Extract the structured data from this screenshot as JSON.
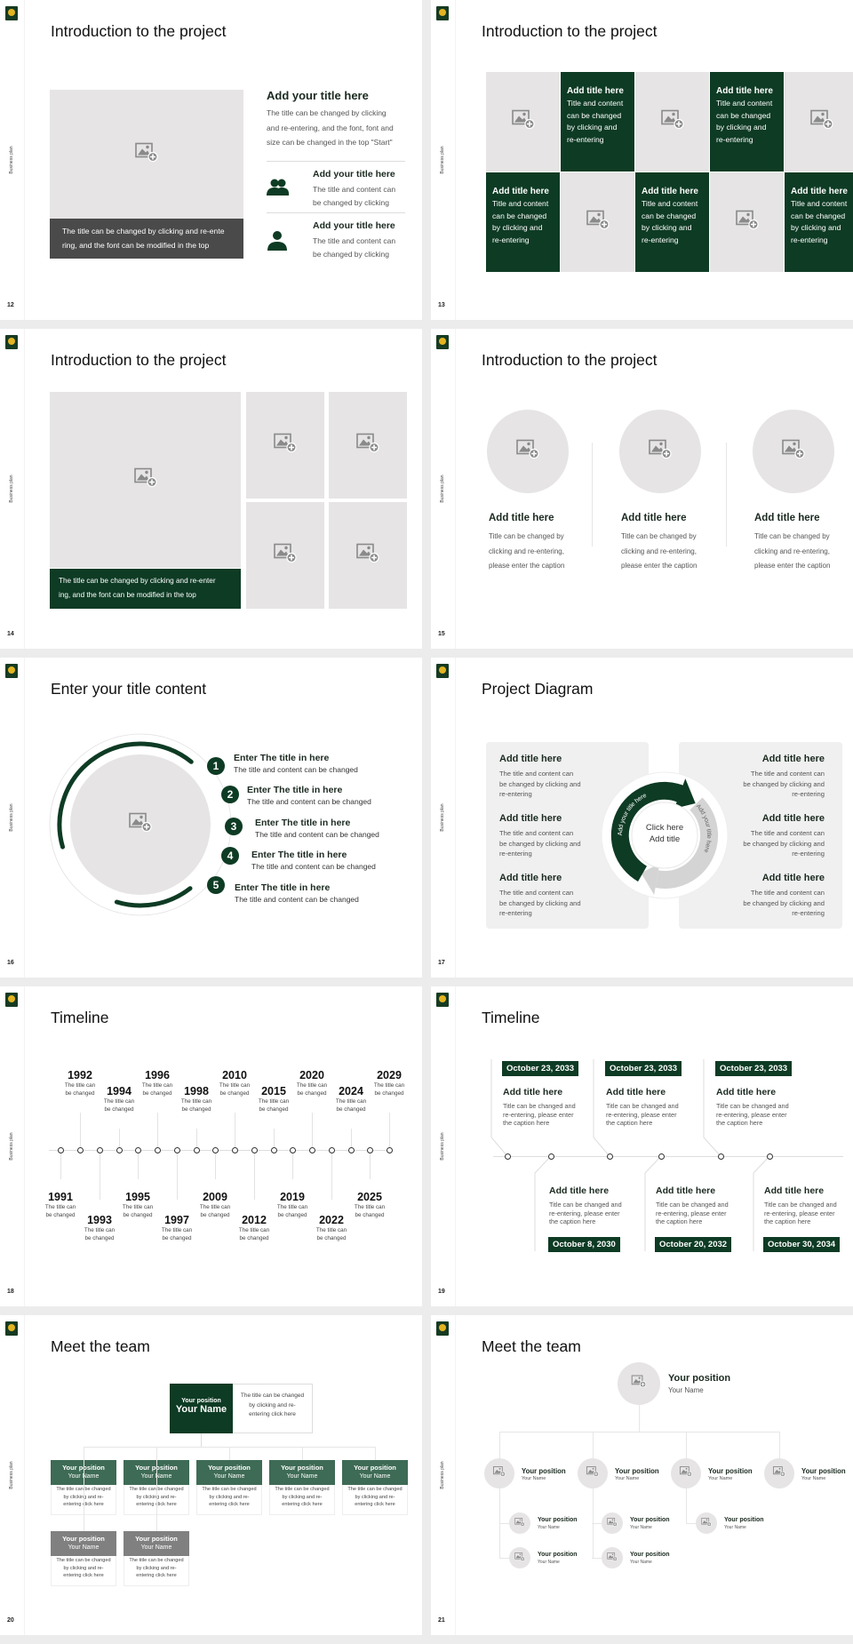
{
  "deck": {
    "sidebar_label": "Business plan"
  },
  "colors": {
    "brand_green": "#0e3b24",
    "team_green": "#3e6b55",
    "team_gray": "#808080",
    "placeholder": "#e6e4e4",
    "panel": "#f0f0f0"
  },
  "slides": [
    {
      "number": "12",
      "title": "Introduction to the project",
      "caption": [
        "The title can be changed by clicking and re-ente",
        "ring, and the font can be modified in the top"
      ],
      "heading": "Add your title here",
      "text": [
        "The title can be changed by clicking",
        "and re-entering, and the font, font and",
        "size can be changed in the top \"Start\""
      ],
      "items": [
        {
          "icon": "users-icon",
          "title": "Add your title here",
          "text": [
            "The title and content can",
            "be changed by clicking"
          ]
        },
        {
          "icon": "user-icon",
          "title": "Add your title here",
          "text": [
            "The title and content can",
            "be changed by clicking"
          ]
        }
      ]
    },
    {
      "number": "13",
      "title": "Introduction to the project",
      "text_cells": [
        {
          "title": "Add title here",
          "text": [
            "Title and content",
            "can be changed",
            "by clicking and",
            "re-entering"
          ]
        },
        {
          "title": "Add title here",
          "text": [
            "Title and content",
            "can be changed",
            "by clicking and",
            "re-entering"
          ]
        },
        {
          "title": "Add title here",
          "text": [
            "Title and content",
            "can be changed",
            "by clicking and",
            "re-entering"
          ]
        },
        {
          "title": "Add title here",
          "text": [
            "Title and content",
            "can be changed",
            "by clicking and",
            "re-entering"
          ]
        },
        {
          "title": "Add title here",
          "text": [
            "Title and content",
            "can be changed",
            "by clicking and",
            "re-entering"
          ]
        }
      ]
    },
    {
      "number": "14",
      "title": "Introduction to the project",
      "caption": [
        "The title can be changed by clicking and re-enter",
        "ing, and the font can be modified in the top"
      ]
    },
    {
      "number": "15",
      "title": "Introduction to the project",
      "columns": [
        {
          "title": "Add title here",
          "text": [
            "Title can be changed by",
            "clicking and re-entering,",
            "please enter the caption"
          ]
        },
        {
          "title": "Add title here",
          "text": [
            "Title can be changed by",
            "clicking and re-entering,",
            "please enter the caption"
          ]
        },
        {
          "title": "Add title here",
          "text": [
            "Title can be changed by",
            "clicking and re-entering,",
            "please enter the caption"
          ]
        }
      ]
    },
    {
      "number": "16",
      "title": "Enter your title content",
      "items": [
        {
          "num": "1",
          "title": "Enter The title in here",
          "text": "The title and content can be changed"
        },
        {
          "num": "2",
          "title": "Enter The title in here",
          "text": "The title and content can be changed"
        },
        {
          "num": "3",
          "title": "Enter The title in here",
          "text": "The title and content can be changed"
        },
        {
          "num": "4",
          "title": "Enter The title in here",
          "text": "The title and content can be changed"
        },
        {
          "num": "5",
          "title": "Enter The title in here",
          "text": "The title and content can be changed"
        }
      ]
    },
    {
      "number": "17",
      "title": "Project Diagram",
      "center": [
        "Click here",
        "Add title"
      ],
      "arc_labels": [
        "Add your title here",
        "Add your title here"
      ],
      "left": [
        {
          "title": "Add title here",
          "text": [
            "The title and content can",
            "be changed by clicking and",
            "re-entering"
          ]
        },
        {
          "title": "Add title here",
          "text": [
            "The title and content can",
            "be changed by clicking and",
            "re-entering"
          ]
        },
        {
          "title": "Add title here",
          "text": [
            "The title and content can",
            "be changed by clicking and",
            "re-entering"
          ]
        }
      ],
      "right": [
        {
          "title": "Add title here",
          "text": [
            "The title and content can",
            "be changed by clicking and",
            "re-entering"
          ]
        },
        {
          "title": "Add title here",
          "text": [
            "The title and content can",
            "be changed by clicking and",
            "re-entering"
          ]
        },
        {
          "title": "Add title here",
          "text": [
            "The title and content can",
            "be changed by clicking and",
            "re-entering"
          ]
        }
      ]
    },
    {
      "number": "18",
      "title": "Timeline",
      "events": [
        {
          "year": "1991",
          "text": [
            "The title can",
            "be changed"
          ]
        },
        {
          "year": "1992",
          "text": [
            "The title can",
            "be changed"
          ]
        },
        {
          "year": "1993",
          "text": [
            "The title can",
            "be changed"
          ]
        },
        {
          "year": "1994",
          "text": [
            "The title can",
            "be changed"
          ]
        },
        {
          "year": "1995",
          "text": [
            "The title can",
            "be changed"
          ]
        },
        {
          "year": "1996",
          "text": [
            "The title can",
            "be changed"
          ]
        },
        {
          "year": "1997",
          "text": [
            "The title can",
            "be changed"
          ]
        },
        {
          "year": "1998",
          "text": [
            "The title can",
            "be changed"
          ]
        },
        {
          "year": "2009",
          "text": [
            "The title can",
            "be changed"
          ]
        },
        {
          "year": "2010",
          "text": [
            "The title can",
            "be changed"
          ]
        },
        {
          "year": "2012",
          "text": [
            "The title can",
            "be changed"
          ]
        },
        {
          "year": "2015",
          "text": [
            "The title can",
            "be changed"
          ]
        },
        {
          "year": "2019",
          "text": [
            "The title can",
            "be changed"
          ]
        },
        {
          "year": "2020",
          "text": [
            "The title can",
            "be changed"
          ]
        },
        {
          "year": "2022",
          "text": [
            "The title can",
            "be changed"
          ]
        },
        {
          "year": "2024",
          "text": [
            "The title can",
            "be changed"
          ]
        },
        {
          "year": "2025",
          "text": [
            "The title can",
            "be changed"
          ]
        },
        {
          "year": "2029",
          "text": [
            "The title can",
            "be changed"
          ]
        }
      ]
    },
    {
      "number": "19",
      "title": "Timeline",
      "events": [
        {
          "date": "October 23, 2033",
          "title": "Add title here",
          "text": [
            "Title can be changed and",
            "re-entering, please enter",
            "the caption here"
          ]
        },
        {
          "date": "October 8, 2030",
          "title": "Add title here",
          "text": [
            "Title can be changed and",
            "re-entering, please enter",
            "the caption here"
          ]
        },
        {
          "date": "October 23, 2033",
          "title": "Add title here",
          "text": [
            "Title can be changed and",
            "re-entering, please enter",
            "the caption here"
          ]
        },
        {
          "date": "October 20, 2032",
          "title": "Add title here",
          "text": [
            "Title can be changed and",
            "re-entering, please enter",
            "the caption here"
          ]
        },
        {
          "date": "October 23, 2033",
          "title": "Add title here",
          "text": [
            "Title can be changed and",
            "re-entering, please enter",
            "the caption here"
          ]
        },
        {
          "date": "October 30, 2034",
          "title": "Add title here",
          "text": [
            "Title can be changed and",
            "re-entering, please enter",
            "the caption here"
          ]
        }
      ]
    },
    {
      "number": "20",
      "title": "Meet the team",
      "lead": {
        "position": "Your position",
        "name": "Your Name",
        "text": "The title can be changed by clicking and re-entering click here"
      },
      "members": [
        {
          "position": "Your position",
          "name": "Your Name",
          "text": "The title can be changed by clicking and re-entering click here"
        },
        {
          "position": "Your position",
          "name": "Your Name",
          "text": "The title can be changed by clicking and re-entering click here"
        },
        {
          "position": "Your position",
          "name": "Your Name",
          "text": "The title can be changed by clicking and re-entering click here"
        },
        {
          "position": "Your position",
          "name": "Your Name",
          "text": "The title can be changed by clicking and re-entering click here"
        },
        {
          "position": "Your position",
          "name": "Your Name",
          "text": "The title can be changed by clicking and re-entering click here"
        },
        {
          "position": "Your position",
          "name": "Your Name",
          "text": "The title can be changed by clicking and re-entering click here"
        },
        {
          "position": "Your position",
          "name": "Your Name",
          "text": "The title can be changed by clicking and re-entering click here"
        }
      ]
    },
    {
      "number": "21",
      "title": "Meet the team",
      "lead": {
        "position": "Your position",
        "name": "Your Name"
      },
      "managers": [
        {
          "position": "Your position",
          "name": "Your Name"
        },
        {
          "position": "Your position",
          "name": "Your Name"
        },
        {
          "position": "Your position",
          "name": "Your Name"
        },
        {
          "position": "Your position",
          "name": "Your Name"
        }
      ],
      "staff": [
        {
          "position": "Your position",
          "name": "Your Name"
        },
        {
          "position": "Your position",
          "name": "Your Name"
        },
        {
          "position": "Your position",
          "name": "Your Name"
        },
        {
          "position": "Your position",
          "name": "Your Name"
        },
        {
          "position": "Your position",
          "name": "Your Name"
        }
      ]
    }
  ]
}
